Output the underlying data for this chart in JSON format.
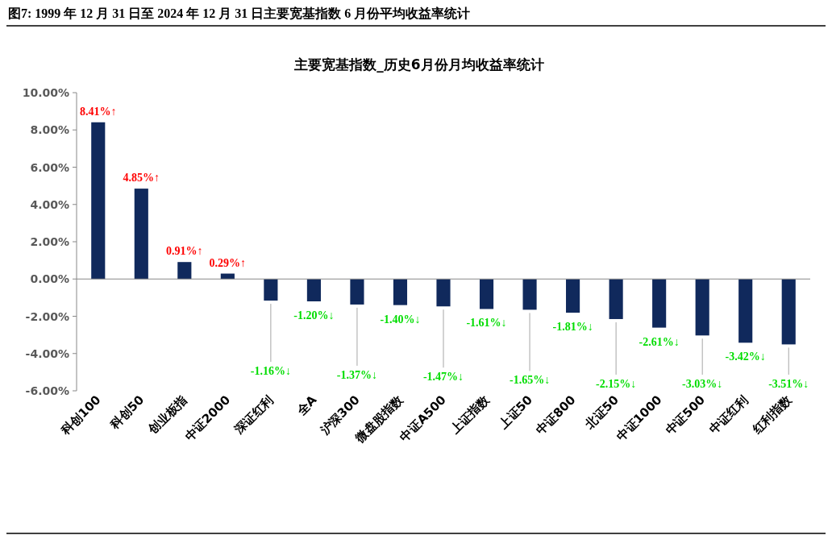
{
  "chart_data": {
    "type": "bar",
    "title": "图7:  1999 年 12 月 31 日至 2024 年 12 月 31 日主要宽基指数 6 月份平均收益率统计",
    "subtitle": "主要宽基指数_历史6月份月均收益率统计",
    "categories": [
      "科创100",
      "科创50",
      "创业板指",
      "中证2000",
      "深证红利",
      "全A",
      "沪深300",
      "微盘股指数",
      "中证A500",
      "上证指数",
      "上证50",
      "中证800",
      "北证50",
      "中证1000",
      "中证500",
      "中证红利",
      "红利指数"
    ],
    "values": [
      8.41,
      4.85,
      0.91,
      0.29,
      -1.16,
      -1.2,
      -1.37,
      -1.4,
      -1.47,
      -1.61,
      -1.65,
      -1.81,
      -2.15,
      -2.61,
      -3.03,
      -3.42,
      -3.51
    ],
    "value_labels": [
      "8.41%↑",
      "4.85%↑",
      "0.91%↑",
      "0.29%↑",
      "-1.16%↓",
      "-1.20%↓",
      "-1.37%↓",
      "-1.40%↓",
      "-1.47%↓",
      "-1.61%↓",
      "-1.65%↓",
      "-1.81%↓",
      "-2.15%↓",
      "-2.61%↓",
      "-3.03%↓",
      "-3.42%↓",
      "-3.51%↓"
    ],
    "color": "#10295c",
    "ylim": [
      -6,
      10
    ],
    "yticks": [
      {
        "value": -6,
        "label": "-6.00%"
      },
      {
        "value": -4,
        "label": "-4.00%"
      },
      {
        "value": -2,
        "label": "-2.00%"
      },
      {
        "value": 0,
        "label": "0.00%"
      },
      {
        "value": 2,
        "label": "2.00%"
      },
      {
        "value": 4,
        "label": "4.00%"
      },
      {
        "value": 6,
        "label": "6.00%"
      },
      {
        "value": 8,
        "label": "8.00%"
      },
      {
        "value": 10,
        "label": "10.00%"
      }
    ]
  }
}
